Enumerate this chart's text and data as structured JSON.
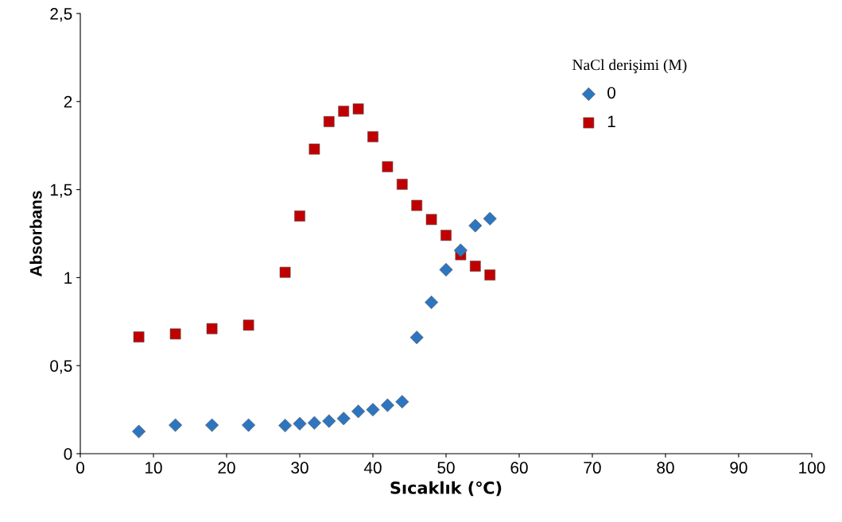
{
  "chart_data": {
    "type": "scatter",
    "xlabel": "Sıcaklık (℃)",
    "ylabel": "Absorbans",
    "legend_title": "NaCl derişimi (M)",
    "legend": "top right",
    "grid": false,
    "xlim": [
      0,
      100
    ],
    "xticks": [
      0,
      10,
      20,
      30,
      40,
      50,
      60,
      70,
      80,
      90,
      100
    ],
    "ylim": [
      0,
      2.5
    ],
    "yticks": [
      0,
      {
        "value": 0.5,
        "label": "0,5"
      },
      1,
      {
        "value": 1.5,
        "label": "1,5"
      },
      2,
      {
        "value": 2.5,
        "label": "2,5"
      }
    ],
    "x": [
      8,
      13,
      18,
      23,
      28,
      30,
      32,
      34,
      36,
      38,
      40,
      42,
      44,
      46,
      48,
      50,
      52,
      54,
      56
    ],
    "series": [
      {
        "name": "0",
        "color": "#2e75c0",
        "marker": "diamond",
        "values": [
          0.126,
          0.162,
          0.162,
          0.162,
          0.16,
          0.17,
          0.175,
          0.185,
          0.2,
          0.24,
          0.25,
          0.275,
          0.295,
          0.66,
          0.86,
          1.045,
          1.155,
          1.295,
          1.335
        ]
      },
      {
        "name": "1",
        "color": "#c00000",
        "marker": "square",
        "values": [
          0.663,
          0.68,
          0.71,
          0.73,
          1.03,
          1.35,
          1.73,
          1.886,
          1.945,
          1.958,
          1.8,
          1.63,
          1.53,
          1.41,
          1.33,
          1.24,
          1.13,
          1.065,
          1.015
        ]
      }
    ]
  }
}
